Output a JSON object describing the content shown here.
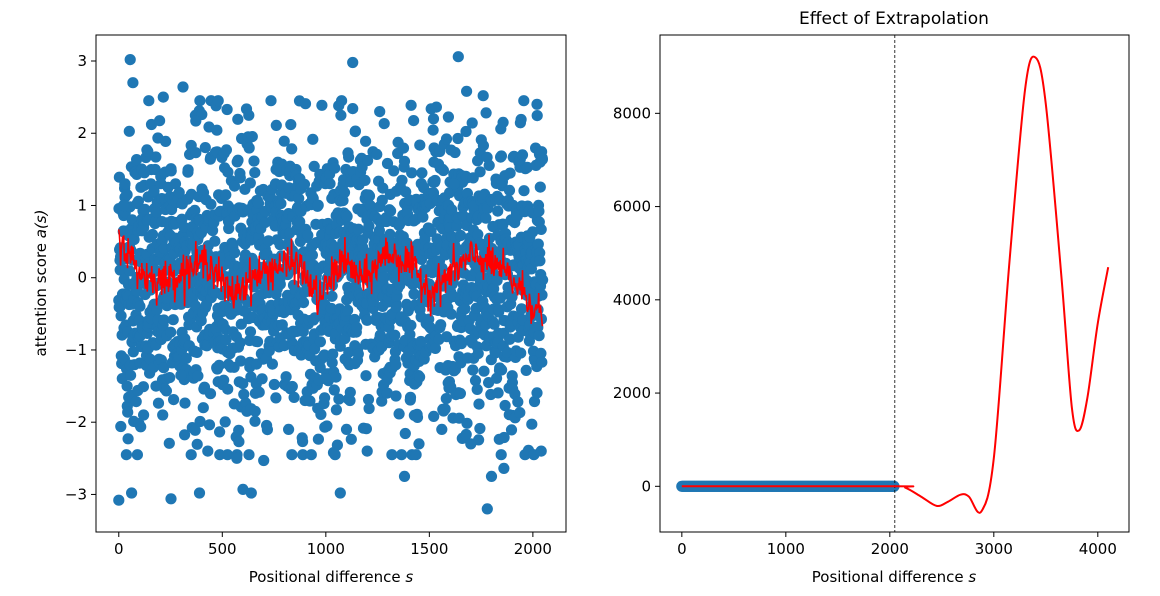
{
  "chart_data": [
    {
      "type": "scatter",
      "title": "",
      "xlabel": "Positional difference s",
      "ylabel": "attention score a(s)",
      "xlim": [
        -110,
        2160
      ],
      "ylim": [
        -3.52,
        3.36
      ],
      "x_ticks": [
        0,
        500,
        1000,
        1500,
        2000
      ],
      "y_ticks": [
        -3,
        -2,
        -1,
        0,
        1,
        2,
        3
      ],
      "grid": false,
      "colors": {
        "scatter": "#1f77b4",
        "line": "#ff0000"
      },
      "series": [
        {
          "kind": "scatter",
          "points": [
            [
              0,
              -3.08
            ],
            [
              23,
              1.0
            ],
            [
              30,
              1.3
            ],
            [
              40,
              -1.5
            ],
            [
              45,
              -2.23
            ],
            [
              55,
              3.02
            ],
            [
              62,
              -2.98
            ],
            [
              68,
              2.7
            ],
            [
              90,
              -2.45
            ],
            [
              112,
              0.65
            ],
            [
              120,
              -1.9
            ],
            [
              140,
              1.75
            ],
            [
              180,
              -1.5
            ],
            [
              215,
              2.5
            ],
            [
              252,
              -3.06
            ],
            [
              300,
              -1.35
            ],
            [
              310,
              2.64
            ],
            [
              350,
              1.83
            ],
            [
              372,
              2.17
            ],
            [
              390,
              -2.98
            ],
            [
              430,
              -2.4
            ],
            [
              470,
              2.38
            ],
            [
              480,
              2.45
            ],
            [
              530,
              -1.2
            ],
            [
              570,
              -2.5
            ],
            [
              580,
              -2.27
            ],
            [
              600,
              -2.93
            ],
            [
              640,
              -2.98
            ],
            [
              660,
              -1.6
            ],
            [
              700,
              -2.53
            ],
            [
              760,
              1.5
            ],
            [
              820,
              -2.1
            ],
            [
              900,
              -1.7
            ],
            [
              1000,
              -1.4
            ],
            [
              1070,
              -2.98
            ],
            [
              1100,
              -2.1
            ],
            [
              1130,
              2.98
            ],
            [
              1200,
              -2.4
            ],
            [
              1260,
              2.3
            ],
            [
              1310,
              0.6
            ],
            [
              1380,
              -2.75
            ],
            [
              1450,
              -2.3
            ],
            [
              1520,
              2.2
            ],
            [
              1560,
              -2.1
            ],
            [
              1620,
              1.3
            ],
            [
              1640,
              3.06
            ],
            [
              1680,
              2.58
            ],
            [
              1700,
              -2.3
            ],
            [
              1740,
              -1.75
            ],
            [
              1760,
              2.52
            ],
            [
              1780,
              -3.2
            ],
            [
              1800,
              -2.75
            ],
            [
              1860,
              -2.64
            ],
            [
              1950,
              1.7
            ],
            [
              2020,
              2.4
            ],
            [
              2040,
              -2.4
            ]
          ]
        },
        {
          "kind": "line",
          "x_range": [
            0,
            2047
          ],
          "description_values": [
            0.55,
            0.05,
            -0.05,
            0.1,
            0.25,
            -0.25,
            0.0,
            0.15,
            0.2,
            -0.3,
            0.25,
            -0.05,
            0.35,
            0.2,
            -0.2,
            0.1,
            0.3,
            0.15,
            -0.15,
            -0.55
          ]
        }
      ]
    },
    {
      "type": "line",
      "title": "Effect of Extrapolation",
      "xlabel": "Positional difference s",
      "ylabel": "",
      "xlim": [
        -210,
        4300
      ],
      "ylim": [
        -980,
        9680
      ],
      "x_ticks": [
        0,
        1000,
        2000,
        3000,
        4000
      ],
      "y_ticks": [
        0,
        2000,
        4000,
        6000,
        8000
      ],
      "vline": 2048,
      "grid": false,
      "colors": {
        "scatter": "#1f77b4",
        "line": "#ff0000"
      },
      "series": [
        {
          "kind": "scatter",
          "x_range": [
            0,
            2047
          ],
          "y": 0
        },
        {
          "kind": "line",
          "points": [
            [
              0,
              0
            ],
            [
              2047,
              0
            ],
            [
              2150,
              -30
            ],
            [
              2300,
              -220
            ],
            [
              2450,
              -420
            ],
            [
              2560,
              -330
            ],
            [
              2680,
              -180
            ],
            [
              2760,
              -220
            ],
            [
              2880,
              -540
            ],
            [
              3000,
              600
            ],
            [
              3150,
              4800
            ],
            [
              3300,
              8500
            ],
            [
              3400,
              9200
            ],
            [
              3500,
              8200
            ],
            [
              3650,
              4500
            ],
            [
              3750,
              1700
            ],
            [
              3820,
              1200
            ],
            [
              3900,
              1900
            ],
            [
              4000,
              3500
            ],
            [
              4100,
              4700
            ]
          ]
        }
      ]
    }
  ],
  "tick_labels": {
    "left_x": [
      "0",
      "500",
      "1000",
      "1500",
      "2000"
    ],
    "left_y": [
      "3",
      "2",
      "1",
      "0",
      "−1",
      "−2",
      "−3"
    ],
    "right_x": [
      "0",
      "1000",
      "2000",
      "3000",
      "4000"
    ],
    "right_y": [
      "8000",
      "6000",
      "4000",
      "2000",
      "0"
    ]
  },
  "labels": {
    "left_xlabel_text": "Positional difference ",
    "left_xlabel_var": "s",
    "left_ylabel_text": "attention score ",
    "left_ylabel_var": "a(s)",
    "right_xlabel_text": "Positional difference ",
    "right_xlabel_var": "s",
    "right_title": "Effect of Extrapolation"
  }
}
